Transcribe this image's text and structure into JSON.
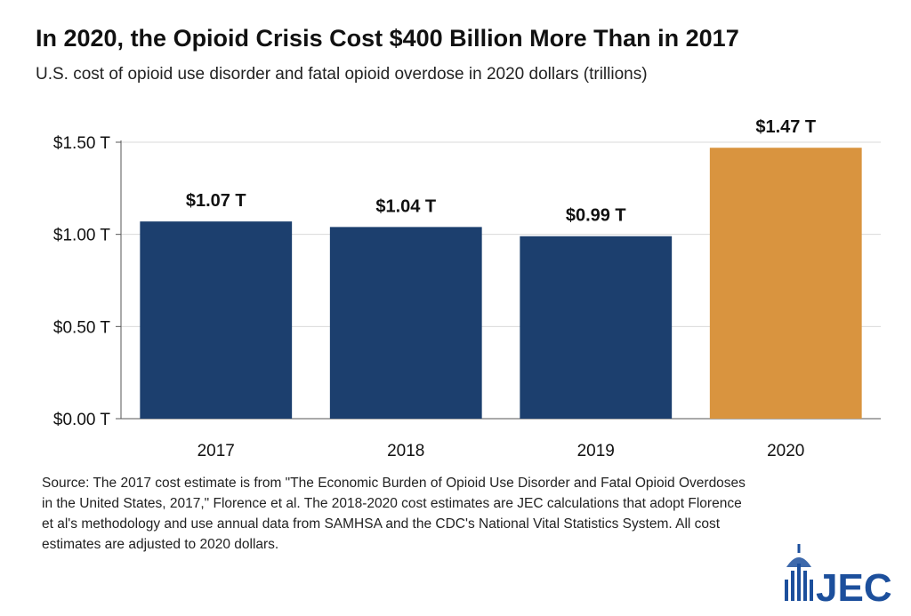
{
  "title": "In 2020, the Opioid Crisis Cost $400 Billion More Than in 2017",
  "subtitle": "U.S. cost of opioid use disorder and fatal opioid overdose in 2020 dollars (trillions)",
  "footnote": "Source: The 2017 cost estimate is from \"The Economic Burden of Opioid Use Disorder and Fatal Opioid Overdoses in the United States, 2017,\" Florence et al. The 2018-2020 cost estimates are JEC calculations that adopt Florence et al's methodology and use annual data from SAMHSA and the CDC's National Vital Statistics System. All cost estimates are adjusted to 2020 dollars.",
  "logo": {
    "text": "JEC",
    "icon": "capitol-dome-bar-icon"
  },
  "colors": {
    "bar": "#1c3f6e",
    "highlight": "#d9943f",
    "grid": "#d9d9d9",
    "axis": "#555555",
    "logo": "#1c4f9c"
  },
  "chart_data": {
    "type": "bar",
    "categories": [
      "2017",
      "2018",
      "2019",
      "2020"
    ],
    "values": [
      1.07,
      1.04,
      0.99,
      1.47
    ],
    "data_labels": [
      "$1.07 T",
      "$1.04 T",
      "$0.99 T",
      "$1.47 T"
    ],
    "highlight_index": 3,
    "yticks": [
      0,
      0.5,
      1.0,
      1.5
    ],
    "ytick_labels": [
      "$0.00 T",
      "$0.50 T",
      "$1.00 T",
      "$1.50 T"
    ],
    "ylim": [
      0,
      1.5
    ],
    "grid": true
  }
}
